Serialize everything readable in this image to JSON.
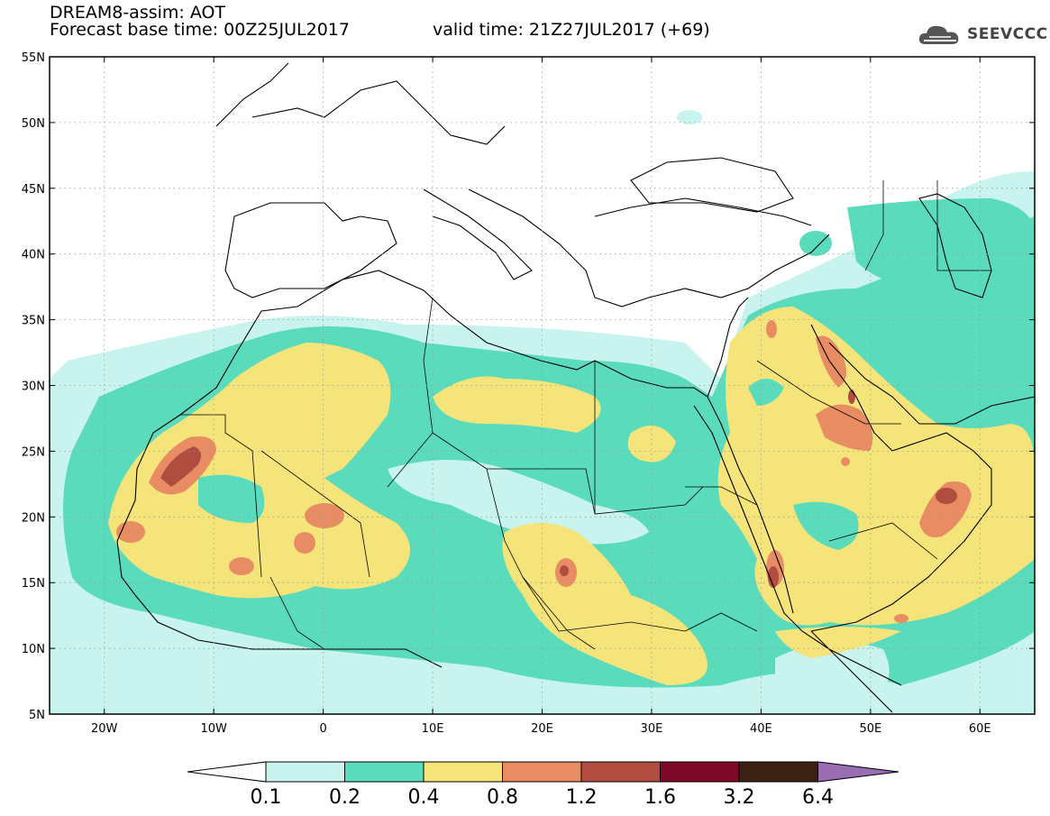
{
  "title": {
    "line1": "DREAM8-assim: AOT",
    "line2": "Forecast base time: 00Z25JUL2017",
    "valid": "valid time: 21Z27JUL2017 (+69)"
  },
  "logo": {
    "text": "SEEVCCC",
    "icon": "cloud-icon"
  },
  "axes": {
    "lon_min": -25,
    "lon_max": 65,
    "lat_min": 5,
    "lat_max": 55,
    "x_ticks": [
      {
        "lon": -20,
        "label": "20W"
      },
      {
        "lon": -10,
        "label": "10W"
      },
      {
        "lon": 0,
        "label": "0"
      },
      {
        "lon": 10,
        "label": "10E"
      },
      {
        "lon": 20,
        "label": "20E"
      },
      {
        "lon": 30,
        "label": "30E"
      },
      {
        "lon": 40,
        "label": "40E"
      },
      {
        "lon": 50,
        "label": "50E"
      },
      {
        "lon": 60,
        "label": "60E"
      }
    ],
    "y_ticks": [
      {
        "lat": 5,
        "label": "5N"
      },
      {
        "lat": 10,
        "label": "10N"
      },
      {
        "lat": 15,
        "label": "15N"
      },
      {
        "lat": 20,
        "label": "20N"
      },
      {
        "lat": 25,
        "label": "25N"
      },
      {
        "lat": 30,
        "label": "30N"
      },
      {
        "lat": 35,
        "label": "35N"
      },
      {
        "lat": 40,
        "label": "40N"
      },
      {
        "lat": 45,
        "label": "45N"
      },
      {
        "lat": 50,
        "label": "50N"
      },
      {
        "lat": 55,
        "label": "55N"
      }
    ],
    "grid": "dotted"
  },
  "colorbar": {
    "levels": [
      "0.1",
      "0.2",
      "0.4",
      "0.8",
      "1.2",
      "1.6",
      "3.2",
      "6.4"
    ],
    "colors": [
      "#c8f3ee",
      "#5adbbc",
      "#f5e47a",
      "#e88c64",
      "#b04c40",
      "#7c0a28",
      "#3c2214",
      "#9a6cb4"
    ],
    "low_color": "#ffffff"
  }
}
